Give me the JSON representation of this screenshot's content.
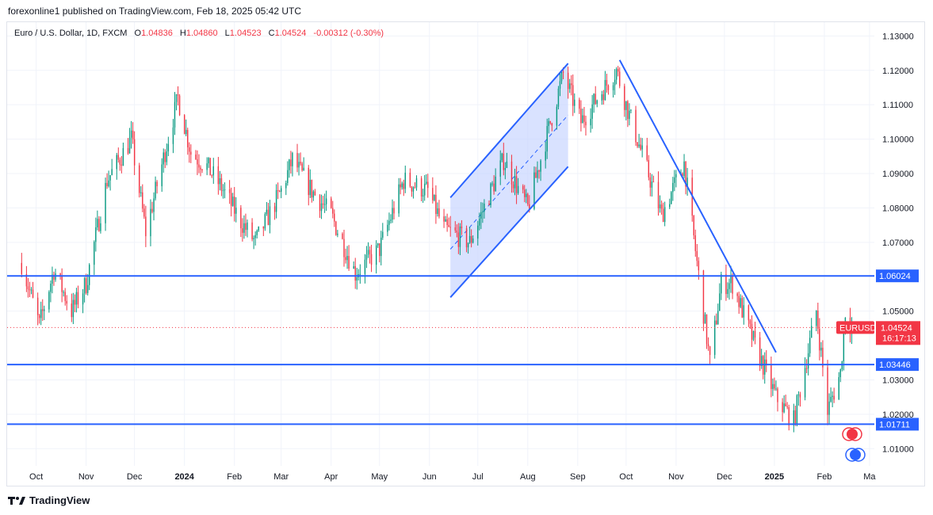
{
  "publisher_line": "forexonline1 published on TradingView.com, Feb 18, 2025 05:42 UTC",
  "legend": {
    "symbol": "Euro / U.S. Dollar, 1D, FXCM",
    "open_label": "O",
    "open": "1.04836",
    "high_label": "H",
    "high": "1.04860",
    "low_label": "L",
    "low": "1.04523",
    "close_label": "C",
    "close": "1.04524",
    "change": "-0.00312 (-0.30%)"
  },
  "brand": "TradingView",
  "colors": {
    "up": "#089981",
    "down": "#f23645",
    "drawing": "#2962ff",
    "channel_fill": "#c5d3ff"
  },
  "chart_data": {
    "type": "candlestick",
    "symbol": "EURUSD",
    "title": "Euro / U.S. Dollar, 1D, FXCM",
    "y_ticks": [
      "1.13000",
      "1.12000",
      "1.11000",
      "1.10000",
      "1.09000",
      "1.08000",
      "1.07000",
      "1.05000",
      "1.03000",
      "1.02000",
      "1.01000"
    ],
    "ylim": [
      1.005,
      1.134
    ],
    "x_labels": [
      {
        "label": "Oct",
        "date": "2023-10-01"
      },
      {
        "label": "Nov",
        "date": "2023-11-01"
      },
      {
        "label": "Dec",
        "date": "2023-12-01"
      },
      {
        "label": "2024",
        "date": "2024-01-01"
      },
      {
        "label": "Feb",
        "date": "2024-02-01"
      },
      {
        "label": "Mar",
        "date": "2024-03-01"
      },
      {
        "label": "Apr",
        "date": "2024-04-01"
      },
      {
        "label": "May",
        "date": "2024-05-01"
      },
      {
        "label": "Jun",
        "date": "2024-06-01"
      },
      {
        "label": "Jul",
        "date": "2024-07-01"
      },
      {
        "label": "Aug",
        "date": "2024-08-01"
      },
      {
        "label": "Sep",
        "date": "2024-09-01"
      },
      {
        "label": "Oct",
        "date": "2024-10-01"
      },
      {
        "label": "Nov",
        "date": "2024-11-01"
      },
      {
        "label": "Dec",
        "date": "2024-12-01"
      },
      {
        "label": "2025",
        "date": "2025-01-01"
      },
      {
        "label": "Feb",
        "date": "2025-02-01"
      },
      {
        "label": "Ma",
        "date": "2025-03-01"
      }
    ],
    "price_path": [
      [
        "2023-09-22",
        1.064
      ],
      [
        "2023-10-03",
        1.046
      ],
      [
        "2023-10-12",
        1.062
      ],
      [
        "2023-10-23",
        1.05
      ],
      [
        "2023-11-01",
        1.058
      ],
      [
        "2023-11-14",
        1.088
      ],
      [
        "2023-11-29",
        1.1
      ],
      [
        "2023-12-08",
        1.073
      ],
      [
        "2023-12-28",
        1.112
      ],
      [
        "2024-01-05",
        1.096
      ],
      [
        "2024-01-15",
        1.092
      ],
      [
        "2024-01-24",
        1.086
      ],
      [
        "2024-02-05",
        1.076
      ],
      [
        "2024-02-14",
        1.07
      ],
      [
        "2024-03-01",
        1.085
      ],
      [
        "2024-03-08",
        1.094
      ],
      [
        "2024-03-20",
        1.085
      ],
      [
        "2024-04-01",
        1.078
      ],
      [
        "2024-04-16",
        1.061
      ],
      [
        "2024-05-01",
        1.068
      ],
      [
        "2024-05-16",
        1.088
      ],
      [
        "2024-05-31",
        1.085
      ],
      [
        "2024-06-10",
        1.074
      ],
      [
        "2024-06-26",
        1.07
      ],
      [
        "2024-07-17",
        1.094
      ],
      [
        "2024-08-01",
        1.08
      ],
      [
        "2024-08-23",
        1.119
      ],
      [
        "2024-09-03",
        1.105
      ],
      [
        "2024-09-25",
        1.12
      ],
      [
        "2024-10-01",
        1.11
      ],
      [
        "2024-10-23",
        1.078
      ],
      [
        "2024-11-06",
        1.093
      ],
      [
        "2024-11-22",
        1.035
      ],
      [
        "2024-11-29",
        1.058
      ],
      [
        "2024-12-06",
        1.058
      ],
      [
        "2024-12-20",
        1.04
      ],
      [
        "2025-01-02",
        1.025
      ],
      [
        "2025-01-13",
        1.018
      ],
      [
        "2025-01-27",
        1.05
      ],
      [
        "2025-02-03",
        1.021
      ],
      [
        "2025-02-11",
        1.032
      ],
      [
        "2025-02-14",
        1.05
      ],
      [
        "2025-02-18",
        1.04524
      ]
    ],
    "horizontal_levels": [
      {
        "label": "1.06024",
        "value": 1.06024
      },
      {
        "label": "1.03446",
        "value": 1.03446
      },
      {
        "label": "1.01711",
        "value": 1.01711
      }
    ],
    "trend_lines": [
      {
        "from": [
          "2024-09-27",
          1.123
        ],
        "to": [
          "2025-01-02",
          1.038
        ]
      }
    ],
    "channel": {
      "upper": [
        [
          "2024-06-14",
          1.083
        ],
        [
          "2024-08-26",
          1.122
        ]
      ],
      "lower": [
        [
          "2024-06-14",
          1.054
        ],
        [
          "2024-08-26",
          1.092
        ]
      ],
      "midline": [
        [
          "2024-06-14",
          1.068
        ],
        [
          "2024-08-26",
          1.107
        ]
      ]
    },
    "current_price": {
      "symbol_tag": "EURUSD",
      "value": "1.04524",
      "countdown": "16:17:13"
    }
  }
}
